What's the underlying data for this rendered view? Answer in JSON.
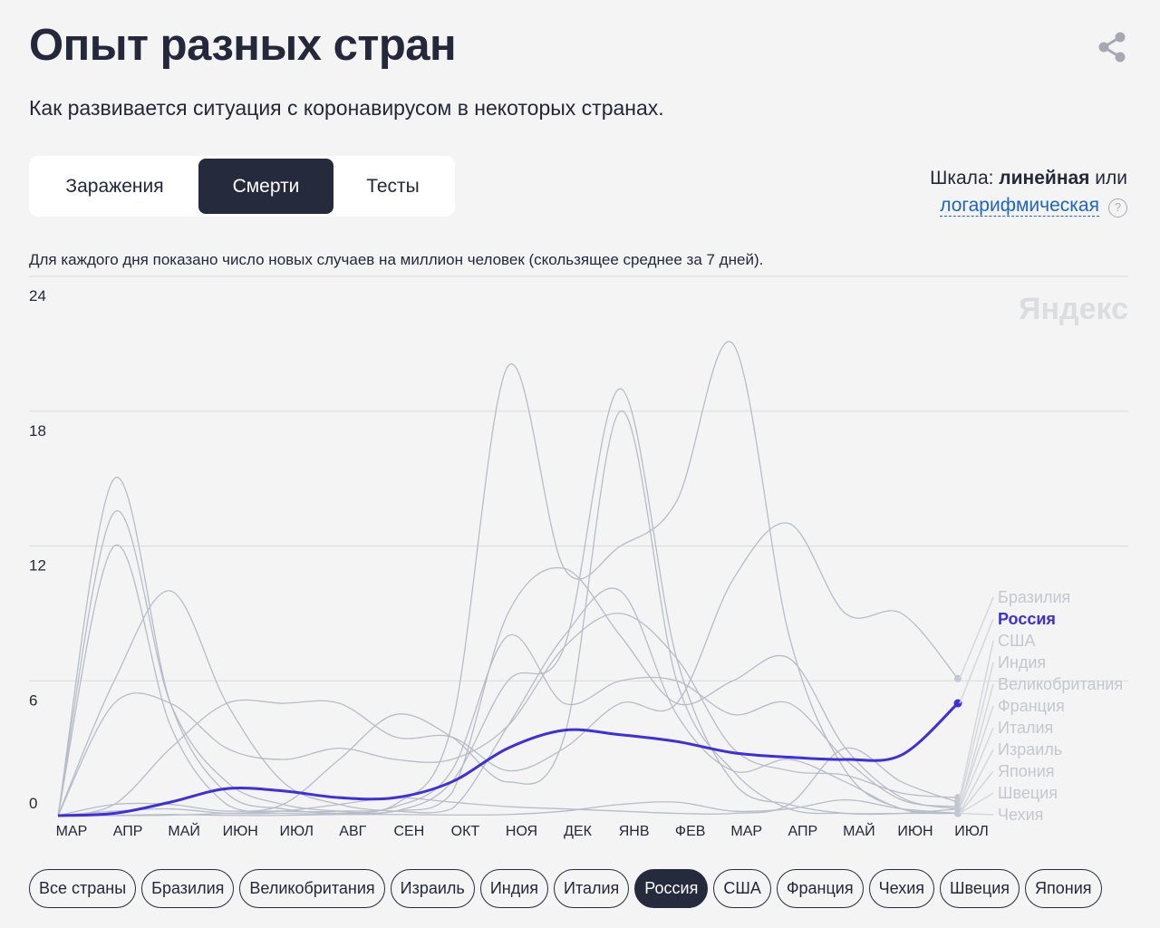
{
  "header": {
    "title": "Опыт разных стран",
    "subtitle": "Как развивается ситуация с коронавирусом в некоторых странах."
  },
  "tabs": [
    {
      "label": "Заражения",
      "active": false
    },
    {
      "label": "Смерти",
      "active": true
    },
    {
      "label": "Тесты",
      "active": false
    }
  ],
  "scale": {
    "prefix": "Шкала:",
    "current": "линейная",
    "or": "или",
    "alternative": "логарифмическая",
    "help": "?"
  },
  "note": "Для каждого дня показано число новых случаев на миллион человек (скользящее среднее за 7 дней).",
  "watermark": "Яндекс",
  "colors": {
    "highlight": "#3d2ee0",
    "other": "#b6bcc8",
    "label_other": "#c3c7cf",
    "accent_dark": "#262a3d",
    "link": "#1a65c9"
  },
  "chart_data": {
    "type": "line",
    "ylim": [
      0,
      24
    ],
    "yticks": [
      0,
      6,
      12,
      18,
      24
    ],
    "xticks": [
      "МАР",
      "АПР",
      "МАЙ",
      "ИЮН",
      "ИЮЛ",
      "АВГ",
      "СЕН",
      "ОКТ",
      "НОЯ",
      "ДЕК",
      "ЯНВ",
      "ФЕВ",
      "МАР",
      "АПР",
      "МАЙ",
      "ИЮН",
      "ИЮЛ"
    ],
    "highlight": "Россия",
    "legend_order": [
      "Бразилия",
      "Россия",
      "США",
      "Индия",
      "Великобритания",
      "Франция",
      "Италия",
      "Израиль",
      "Япония",
      "Швеция",
      "Чехия"
    ],
    "series": [
      {
        "name": "Россия",
        "values": [
          0,
          0.1,
          0.6,
          1.2,
          1.1,
          0.8,
          0.8,
          1.5,
          3.0,
          3.8,
          3.6,
          3.3,
          2.8,
          2.6,
          2.5,
          2.7,
          5.0
        ]
      },
      {
        "name": "Бразилия",
        "values": [
          0,
          0.5,
          3.0,
          5.0,
          5.0,
          5.0,
          3.5,
          3.5,
          2.0,
          3.0,
          5.0,
          5.0,
          10.5,
          13.0,
          9.0,
          9.0,
          6.1
        ]
      },
      {
        "name": "Великобритания",
        "values": [
          0,
          13.5,
          5.0,
          1.5,
          0.5,
          0.2,
          0.2,
          1.5,
          6.0,
          7.5,
          19.0,
          7.0,
          1.5,
          0.5,
          0.1,
          0.1,
          0.3
        ]
      },
      {
        "name": "Италия",
        "values": [
          0,
          15.0,
          5.0,
          1.0,
          0.3,
          0.1,
          0.2,
          1.0,
          9.0,
          11.0,
          8.0,
          5.0,
          6.0,
          7.0,
          3.0,
          0.8,
          0.3
        ]
      },
      {
        "name": "Франция",
        "values": [
          0,
          12.0,
          4.0,
          0.5,
          0.2,
          0.2,
          0.4,
          2.0,
          8.0,
          5.0,
          6.0,
          6.0,
          4.5,
          5.0,
          2.5,
          0.7,
          0.4
        ]
      },
      {
        "name": "США",
        "values": [
          0,
          5.0,
          5.0,
          3.0,
          2.5,
          3.0,
          2.5,
          2.5,
          4.0,
          7.5,
          9.0,
          7.0,
          3.0,
          2.0,
          1.8,
          1.0,
          0.8
        ]
      },
      {
        "name": "Чехия",
        "values": [
          0,
          0.2,
          0.3,
          0.1,
          0.1,
          0.1,
          0.5,
          4.0,
          20.0,
          11.0,
          12.0,
          14.0,
          21.0,
          8.0,
          2.0,
          0.3,
          0.1
        ]
      },
      {
        "name": "Израиль",
        "values": [
          0,
          0.5,
          0.5,
          0.2,
          0.5,
          2.5,
          4.5,
          3.5,
          1.5,
          3.5,
          18.0,
          6.0,
          2.0,
          0.3,
          0.1,
          0.1,
          0.1
        ]
      },
      {
        "name": "Швеция",
        "values": [
          0,
          6.0,
          10.0,
          5.0,
          1.5,
          0.5,
          0.2,
          0.3,
          4.0,
          8.0,
          10.0,
          4.5,
          2.0,
          2.5,
          1.5,
          0.3,
          0.1
        ]
      },
      {
        "name": "Индия",
        "values": [
          0,
          0,
          0.02,
          0.1,
          0.2,
          0.5,
          0.8,
          0.6,
          0.4,
          0.3,
          0.2,
          0.1,
          0.1,
          0.5,
          3.0,
          1.5,
          0.6
        ]
      },
      {
        "name": "Япония",
        "values": [
          0,
          0.01,
          0.05,
          0.01,
          0.01,
          0.05,
          0.05,
          0.03,
          0.05,
          0.2,
          0.5,
          0.6,
          0.2,
          0.3,
          0.7,
          0.3,
          0.1
        ]
      }
    ]
  },
  "country_filter": [
    {
      "label": "Все страны",
      "active": false
    },
    {
      "label": "Бразилия",
      "active": false
    },
    {
      "label": "Великобритания",
      "active": false
    },
    {
      "label": "Израиль",
      "active": false
    },
    {
      "label": "Индия",
      "active": false
    },
    {
      "label": "Италия",
      "active": false
    },
    {
      "label": "Россия",
      "active": true
    },
    {
      "label": "США",
      "active": false
    },
    {
      "label": "Франция",
      "active": false
    },
    {
      "label": "Чехия",
      "active": false
    },
    {
      "label": "Швеция",
      "active": false
    },
    {
      "label": "Япония",
      "active": false
    }
  ]
}
